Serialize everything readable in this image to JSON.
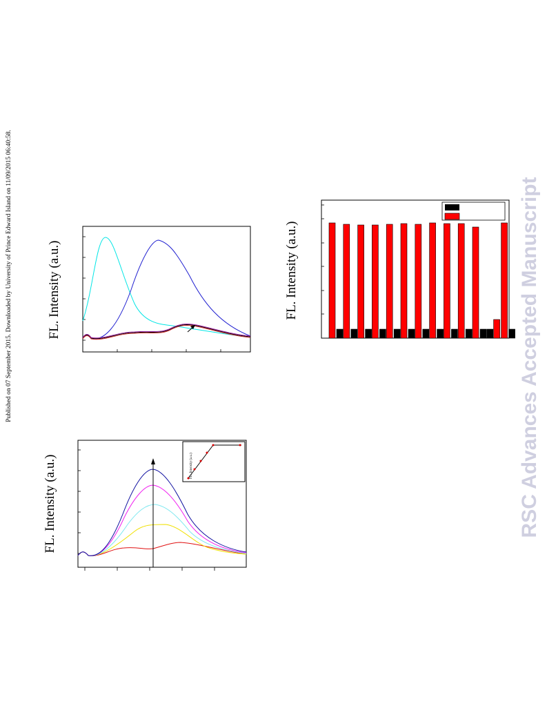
{
  "header": {
    "publication_note": "Published on 07 September 2015. Downloaded by University of Prince Edward Island on 11/09/2015 06:40:58."
  },
  "watermark": "RSC Advances Accepted Manuscript",
  "figures": [
    {
      "y_label": "FL. Intensity (a.u.)"
    },
    {
      "y_label": "FL. Intensity (a.u.)",
      "inset_y_label": "FL. Intensity (a.u.)"
    },
    {
      "y_label": "FL. Intensity (a.u.)"
    }
  ]
}
